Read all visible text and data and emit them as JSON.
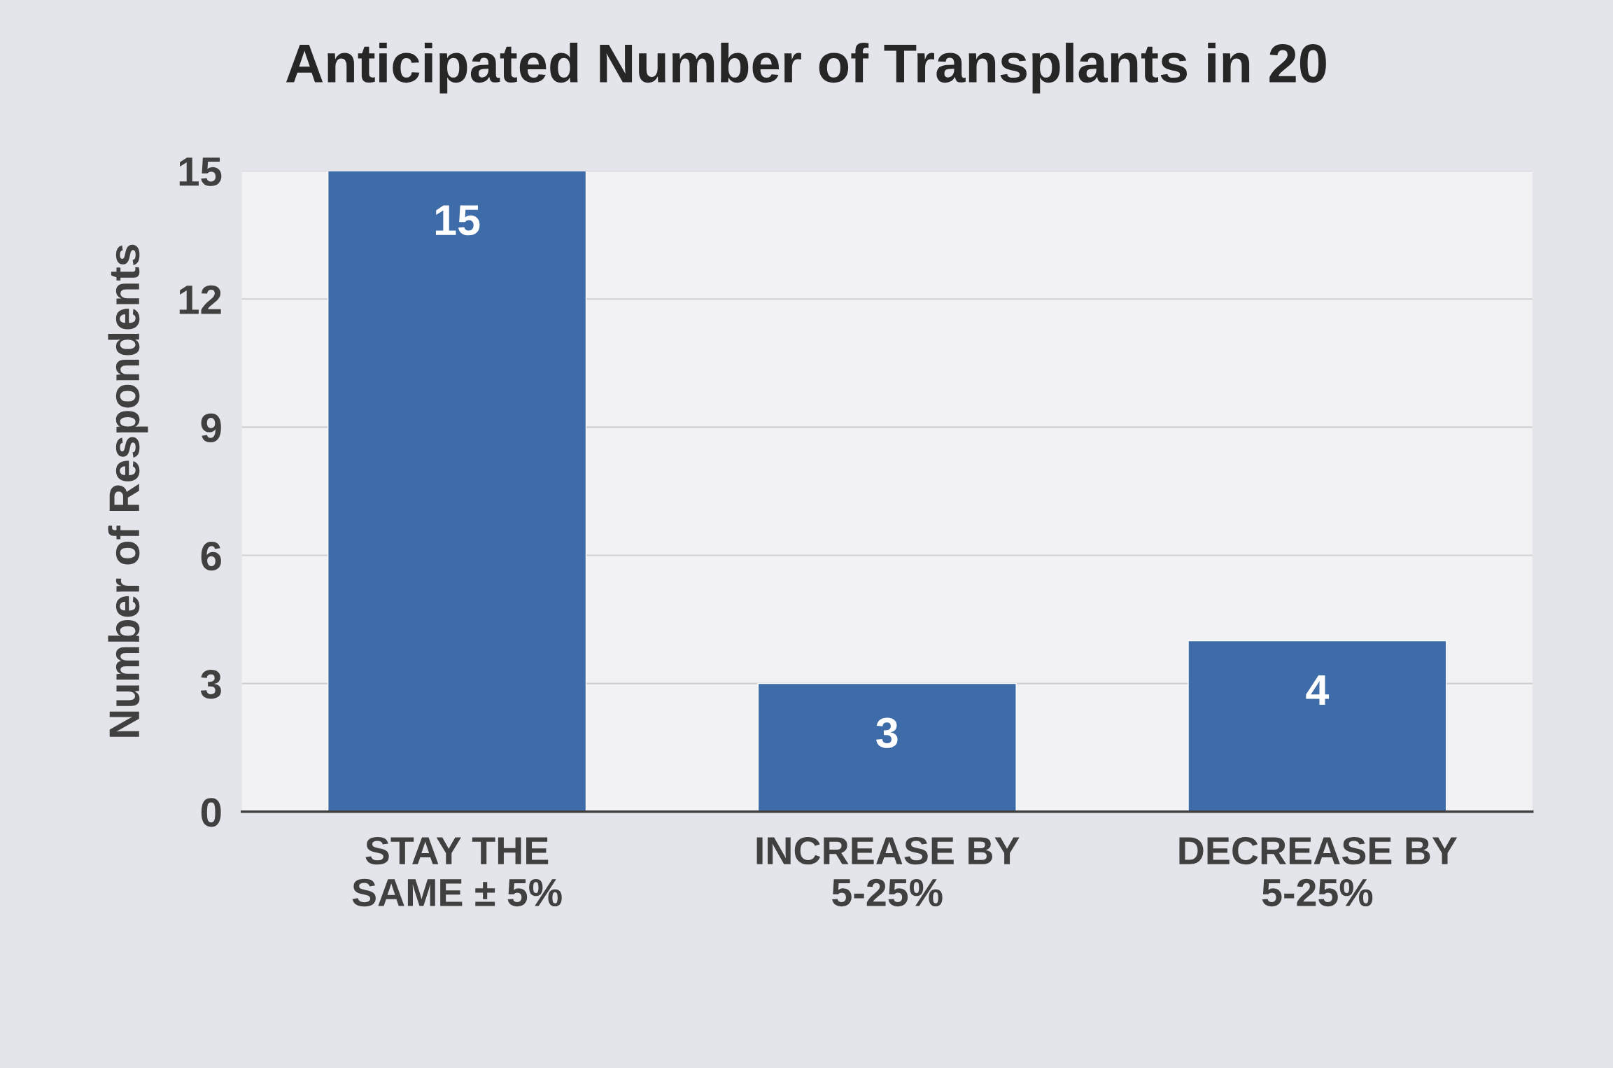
{
  "chart_data": {
    "type": "bar",
    "title": "Anticipated Number of Transplants in 20",
    "ylabel": "Number of Respondents",
    "categories": [
      "STAY THE\nSAME ± 5%",
      "INCREASE BY\n5-25%",
      "DECREASE BY\n5-25%"
    ],
    "values": [
      15,
      3,
      4
    ],
    "color": "#3d6ca8",
    "ylim": [
      0,
      15
    ],
    "yticks": [
      0,
      3,
      6,
      9,
      12,
      15
    ],
    "grid": "y",
    "data_labels": true
  }
}
